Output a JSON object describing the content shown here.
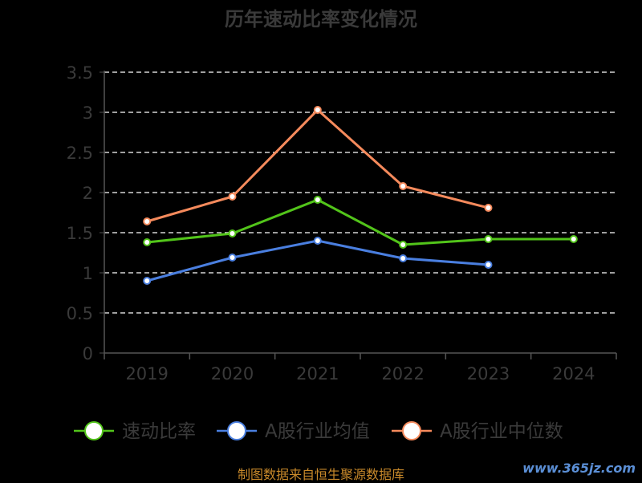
{
  "chart_data": {
    "type": "line",
    "title": "历年速动比率变化情况",
    "categories": [
      "2019",
      "2020",
      "2021",
      "2022",
      "2023",
      "2024"
    ],
    "ylim": [
      0,
      3.5
    ],
    "yticks": [
      "0",
      "0.5",
      "1",
      "1.5",
      "2",
      "2.5",
      "3",
      "3.5"
    ],
    "grid": true,
    "legend_position": "bottom",
    "series": [
      {
        "name": "速动比率",
        "color": "#52c41a",
        "values": [
          1.38,
          1.49,
          1.91,
          1.35,
          1.42,
          1.42
        ]
      },
      {
        "name": "A股行业均值",
        "color": "#4a7fe0",
        "values": [
          0.9,
          1.19,
          1.4,
          1.18,
          1.1,
          null
        ]
      },
      {
        "name": "A股行业中位数",
        "color": "#f58a5c",
        "values": [
          1.64,
          1.95,
          3.03,
          2.08,
          1.81,
          null
        ]
      }
    ]
  },
  "footer": {
    "source": "制图数据来自恒生聚源数据库",
    "watermark": "www.365jz.com"
  }
}
